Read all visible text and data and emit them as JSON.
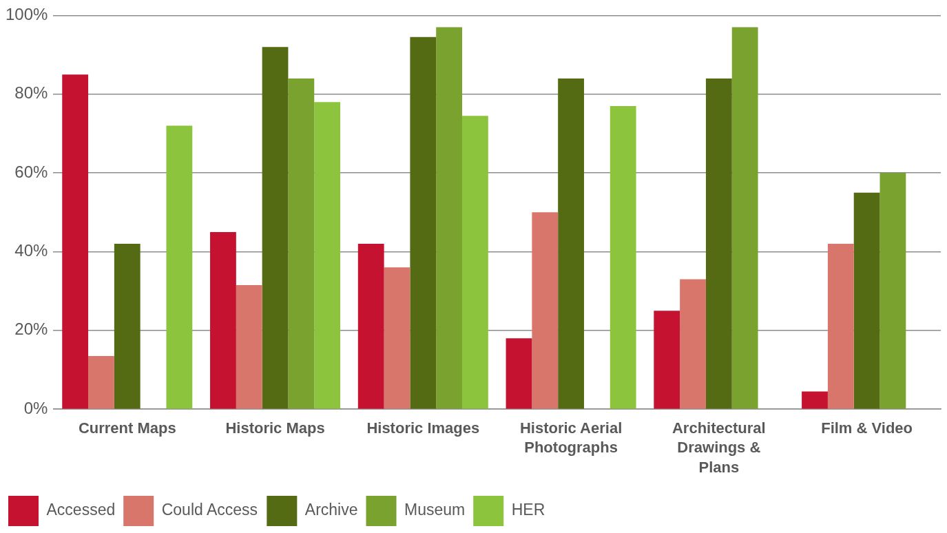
{
  "chart_data": {
    "type": "bar",
    "categories": [
      "Current Maps",
      "Historic Maps",
      "Historic Images",
      "Historic Aerial Photographs",
      "Architectural Drawings & Plans",
      "Film & Video"
    ],
    "series": [
      {
        "name": "Accessed",
        "color": "#c41230",
        "values": [
          85,
          45,
          42,
          18,
          25,
          4.5
        ]
      },
      {
        "name": "Could Access",
        "color": "#d9766b",
        "values": [
          13.5,
          31.5,
          36,
          50,
          33,
          42
        ]
      },
      {
        "name": "Archive",
        "color": "#546b13",
        "values": [
          42,
          92,
          94.5,
          84,
          84,
          55
        ]
      },
      {
        "name": "Museum",
        "color": "#79a22f",
        "values": [
          null,
          84,
          97,
          null,
          97,
          60
        ]
      },
      {
        "name": "HER",
        "color": "#8cc43e",
        "values": [
          72,
          78,
          74.5,
          77,
          null,
          null
        ]
      }
    ],
    "ylim": [
      0,
      100
    ],
    "yticks": [
      {
        "value": 0,
        "label": "0%"
      },
      {
        "value": 20,
        "label": "20%"
      },
      {
        "value": 40,
        "label": "40%"
      },
      {
        "value": 60,
        "label": "60%"
      },
      {
        "value": 80,
        "label": "80%"
      },
      {
        "value": 100,
        "label": "100%"
      }
    ],
    "grid": "y",
    "legend": "bottom left"
  }
}
